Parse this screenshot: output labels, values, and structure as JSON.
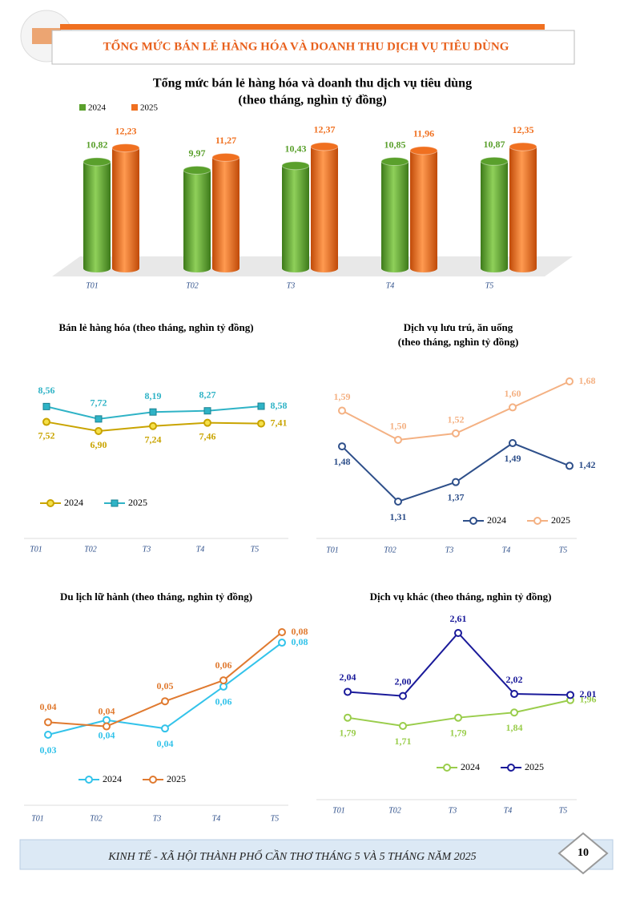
{
  "header": {
    "title": "TỔNG MỨC BÁN LẺ HÀNG HÓA VÀ DOANH THU DỊCH VỤ TIÊU DÙNG"
  },
  "chart_data": [
    {
      "type": "bar3d",
      "title": "Tổng mức bán lẻ hàng hóa và doanh thu dịch vụ tiêu dùng",
      "subtitle": "(theo tháng, nghìn tỷ đồng)",
      "categories": [
        "T01",
        "T02",
        "T3",
        "T4",
        "T5"
      ],
      "series": [
        {
          "name": "2024",
          "color": "#5aa02c",
          "values": [
            10.82,
            9.97,
            10.43,
            10.85,
            10.87
          ],
          "value_labels": [
            "10,82",
            "9,97",
            "10,43",
            "10,85",
            "10,87"
          ]
        },
        {
          "name": "2025",
          "color": "#f07020",
          "values": [
            12.23,
            11.27,
            12.37,
            11.96,
            12.35
          ],
          "value_labels": [
            "12,23",
            "11,27",
            "12,37",
            "11,96",
            "12,35"
          ]
        }
      ]
    },
    {
      "type": "line",
      "title": "Bán lẻ hàng hóa (theo tháng, nghìn tỷ đồng)",
      "categories": [
        "T01",
        "T02",
        "T3",
        "T4",
        "T5"
      ],
      "series": [
        {
          "name": "2024",
          "color": "#c9a400",
          "marker": "circle",
          "values": [
            7.52,
            6.9,
            7.24,
            7.46,
            7.41
          ],
          "value_labels": [
            "7,52",
            "6,90",
            "7,24",
            "7,46",
            "7,41"
          ]
        },
        {
          "name": "2025",
          "color": "#2fb3c6",
          "marker": "square",
          "values": [
            8.56,
            7.72,
            8.19,
            8.27,
            8.58
          ],
          "value_labels": [
            "8,56",
            "7,72",
            "8,19",
            "8,27",
            "8,58"
          ]
        }
      ]
    },
    {
      "type": "line",
      "title": "Dịch vụ lưu trú, ăn uống",
      "subtitle": "(theo tháng, nghìn tỷ đồng)",
      "categories": [
        "T01",
        "T02",
        "T3",
        "T4",
        "T5"
      ],
      "series": [
        {
          "name": "2024",
          "color": "#2e4f8a",
          "marker": "circle",
          "values": [
            1.48,
            1.31,
            1.37,
            1.49,
            1.42
          ],
          "value_labels": [
            "1,48",
            "1,31",
            "1,37",
            "1,49",
            "1,42"
          ]
        },
        {
          "name": "2025",
          "color": "#f4b183",
          "marker": "circle",
          "values": [
            1.59,
            1.5,
            1.52,
            1.6,
            1.68
          ],
          "value_labels": [
            "1,59",
            "1,50",
            "1,52",
            "1,60",
            "1,68"
          ]
        }
      ]
    },
    {
      "type": "line",
      "title": "Du lịch lữ hành (theo tháng, nghìn tỷ đồng)",
      "categories": [
        "T01",
        "T02",
        "T3",
        "T4",
        "T5"
      ],
      "series": [
        {
          "name": "2024",
          "color": "#33c3ea",
          "marker": "circle",
          "values": [
            0.034,
            0.041,
            0.037,
            0.057,
            0.078
          ],
          "value_labels": [
            "0,03",
            "0,04",
            "0,04",
            "0,06",
            "0,08"
          ]
        },
        {
          "name": "2025",
          "color": "#e07a30",
          "marker": "circle",
          "values": [
            0.04,
            0.038,
            0.05,
            0.06,
            0.083
          ],
          "value_labels": [
            "0,04",
            "0,04",
            "0,05",
            "0,06",
            "0,08"
          ]
        }
      ]
    },
    {
      "type": "line",
      "title": "Dịch vụ khác (theo tháng, nghìn tỷ đồng)",
      "categories": [
        "T01",
        "T02",
        "T3",
        "T4",
        "T5"
      ],
      "series": [
        {
          "name": "2024",
          "color": "#9acd4c",
          "marker": "circle",
          "values": [
            1.79,
            1.71,
            1.79,
            1.84,
            1.96
          ],
          "value_labels": [
            "1,79",
            "1,71",
            "1,79",
            "1,84",
            "1,96"
          ]
        },
        {
          "name": "2025",
          "color": "#1a1a9a",
          "marker": "circle",
          "values": [
            2.04,
            2.0,
            2.61,
            2.02,
            2.01
          ],
          "value_labels": [
            "2,04",
            "2,00",
            "2,61",
            "2,02",
            "2,01"
          ]
        }
      ]
    }
  ],
  "footer": {
    "text": "KINH TẾ - XÃ HỘI THÀNH PHỐ CẦN THƠ THÁNG 5 VÀ 5 THÁNG NĂM 2025",
    "page": 10
  }
}
